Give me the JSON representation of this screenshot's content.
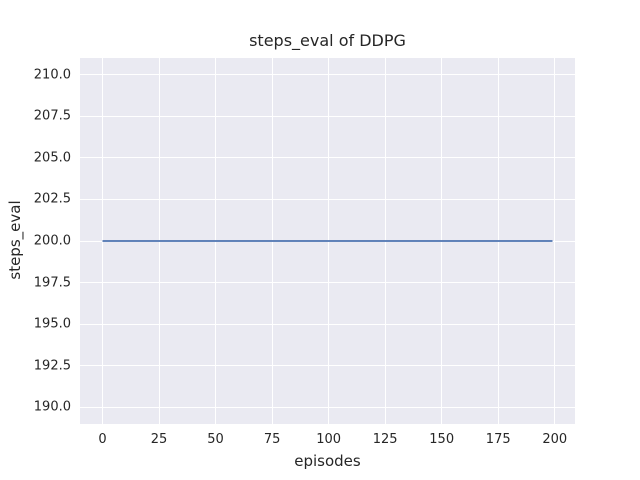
{
  "chart_data": {
    "type": "line",
    "title": "steps_eval of DDPG",
    "xlabel": "episodes",
    "ylabel": "steps_eval",
    "x_ticks": [
      0,
      25,
      50,
      75,
      100,
      125,
      150,
      175,
      200
    ],
    "x_tick_labels": [
      "0",
      "25",
      "50",
      "75",
      "100",
      "125",
      "150",
      "175",
      "200"
    ],
    "y_ticks": [
      190.0,
      192.5,
      195.0,
      197.5,
      200.0,
      202.5,
      205.0,
      207.5,
      210.0
    ],
    "y_tick_labels": [
      "190.0",
      "192.5",
      "195.0",
      "197.5",
      "200.0",
      "202.5",
      "205.0",
      "207.5",
      "210.0"
    ],
    "xlim": [
      -9.95,
      208.95
    ],
    "ylim": [
      189.0,
      211.0
    ],
    "grid": true,
    "legend": false,
    "colors": {
      "plot_background": "#eaeaf2",
      "figure_background": "#ffffff",
      "gridline": "#ffffff",
      "text": "#262626",
      "line": "#4c72b0"
    },
    "series": [
      {
        "name": "steps_eval",
        "color": "#4c72b0",
        "x": [
          0,
          199
        ],
        "values": [
          200,
          200
        ],
        "description": "constant value 200 for all episodes 0 through 199"
      }
    ]
  }
}
